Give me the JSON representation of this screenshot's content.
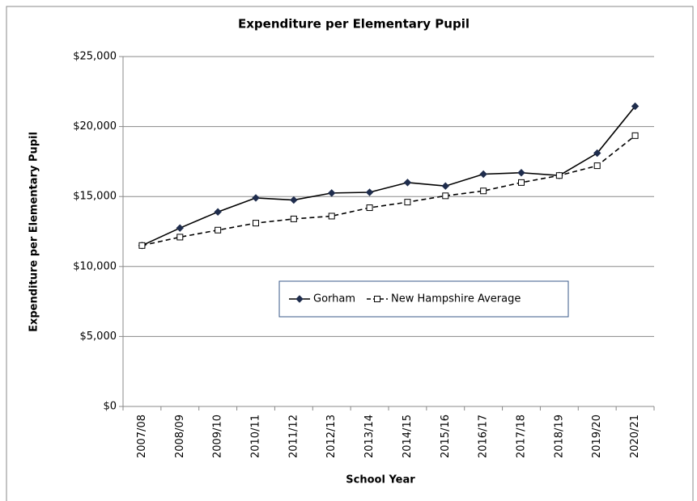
{
  "chart_data": {
    "type": "line",
    "title": "Expenditure per Elementary Pupil",
    "xlabel": "School Year",
    "ylabel": "Expenditure per Elementary Pupil",
    "categories": [
      "2007/08",
      "2008/09",
      "2009/10",
      "2010/11",
      "2011/12",
      "2012/13",
      "2013/14",
      "2014/15",
      "2015/16",
      "2016/17",
      "2017/18",
      "2018/19",
      "2019/20",
      "2020/21"
    ],
    "series": [
      {
        "name": "Gorham",
        "color": "#000000",
        "marker_color": "#1f2d4d",
        "line_style": "solid",
        "marker": "diamond",
        "values": [
          11500,
          12750,
          13900,
          14900,
          14750,
          15250,
          15300,
          16000,
          15750,
          16600,
          16700,
          16500,
          18100,
          21450
        ]
      },
      {
        "name": "New Hampshire Average",
        "color": "#000000",
        "marker_color": "#ffffff",
        "line_style": "dashed",
        "marker": "square",
        "values": [
          11500,
          12100,
          12600,
          13100,
          13400,
          13600,
          14200,
          14600,
          15050,
          15400,
          16000,
          16500,
          17200,
          19350
        ]
      }
    ],
    "ylim": [
      0,
      25000
    ],
    "yticks": [
      {
        "value": 0,
        "label": "$0"
      },
      {
        "value": 5000,
        "label": "$5,000"
      },
      {
        "value": 10000,
        "label": "$10,000"
      },
      {
        "value": 15000,
        "label": "$15,000"
      },
      {
        "value": 20000,
        "label": "$20,000"
      },
      {
        "value": 25000,
        "label": "$25,000"
      }
    ],
    "grid": true,
    "legend": "center"
  }
}
